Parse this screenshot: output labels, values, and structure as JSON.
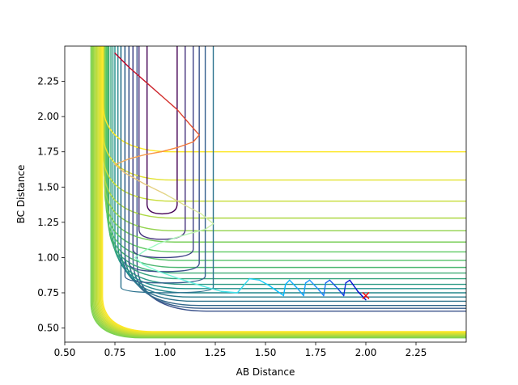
{
  "chart_data": {
    "type": "contour",
    "title": "",
    "xlabel": "AB Distance",
    "ylabel": "BC Distance",
    "xlim": [
      0.5,
      2.5
    ],
    "ylim": [
      0.4,
      2.5
    ],
    "xticks": [
      0.5,
      0.75,
      1.0,
      1.25,
      1.5,
      1.75,
      2.0,
      2.25
    ],
    "xtick_labels": [
      "0.50",
      "0.75",
      "1.00",
      "1.25",
      "1.50",
      "1.75",
      "2.00",
      "2.25"
    ],
    "yticks": [
      0.5,
      0.75,
      1.0,
      1.25,
      1.5,
      1.75,
      2.0,
      2.25
    ],
    "ytick_labels": [
      "0.50",
      "0.75",
      "1.00",
      "1.25",
      "1.50",
      "1.75",
      "2.00",
      "2.25"
    ],
    "grid": false,
    "colormap": [
      "#440154",
      "#3b528b",
      "#21918c",
      "#5ec962",
      "#fde725"
    ],
    "contour_levels": [
      {
        "xmin": 0.86,
        "ymin": 0.62
      },
      {
        "xmin": 0.84,
        "ymin": 0.64
      },
      {
        "xmin": 0.82,
        "ymin": 0.66
      },
      {
        "xmin": 0.8,
        "ymin": 0.69
      },
      {
        "xmin": 0.78,
        "ymin": 0.72
      },
      {
        "xmin": 0.765,
        "ymin": 0.75
      },
      {
        "xmin": 0.75,
        "ymin": 0.78
      },
      {
        "xmin": 0.74,
        "ymin": 0.81
      },
      {
        "xmin": 0.73,
        "ymin": 0.85
      },
      {
        "xmin": 0.72,
        "ymin": 0.89
      },
      {
        "xmin": 0.715,
        "ymin": 0.93
      },
      {
        "xmin": 0.71,
        "ymin": 0.98
      },
      {
        "xmin": 0.705,
        "ymin": 1.04
      },
      {
        "xmin": 0.7,
        "ymin": 1.11
      },
      {
        "xmin": 0.698,
        "ymin": 1.19
      },
      {
        "xmin": 0.695,
        "ymin": 1.28
      },
      {
        "xmin": 0.69,
        "ymin": 1.4
      },
      {
        "xmin": 0.69,
        "ymin": 1.55
      },
      {
        "xmin": 0.69,
        "ymin": 1.75
      }
    ],
    "outer_wall": {
      "xmin": 0.63,
      "ymin": 0.43,
      "levels": 14
    },
    "well_rings": [
      {
        "x0": 0.91,
        "x1": 1.06,
        "top": 2.5,
        "bottom": 1.38,
        "vy": 1.31,
        "color": "#440154"
      },
      {
        "x0": 0.87,
        "x1": 1.1,
        "top": 2.5,
        "bottom": 1.2,
        "vy": 1.13,
        "color": "#46337e"
      },
      {
        "x0": 0.84,
        "x1": 1.14,
        "top": 2.5,
        "bottom": 1.06,
        "vy": 1.0,
        "color": "#404387"
      },
      {
        "x0": 0.82,
        "x1": 1.17,
        "top": 2.5,
        "bottom": 0.96,
        "vy": 0.9,
        "color": "#3b528b"
      },
      {
        "x0": 0.8,
        "x1": 1.2,
        "top": 2.5,
        "bottom": 0.87,
        "vy": 0.82,
        "color": "#345f8d"
      },
      {
        "x0": 0.78,
        "x1": 1.24,
        "top": 2.5,
        "bottom": 0.79,
        "vy": 0.75,
        "color": "#2c728e"
      }
    ],
    "trajectory": {
      "name": "trajectory",
      "x": [
        0.75,
        0.82,
        0.9,
        0.98,
        1.06,
        1.12,
        1.17,
        1.14,
        1.06,
        0.98,
        0.9,
        0.82,
        0.75,
        0.8,
        0.9,
        1.0,
        1.1,
        1.18,
        1.24,
        1.2,
        1.12,
        1.05,
        0.97,
        0.9,
        0.85,
        0.89,
        0.97,
        1.07,
        1.18,
        1.28,
        1.36,
        1.42,
        1.47,
        1.52,
        1.56,
        1.59,
        1.6,
        1.62,
        1.66,
        1.69,
        1.7,
        1.72,
        1.76,
        1.79,
        1.8,
        1.82,
        1.86,
        1.89,
        1.9,
        1.92,
        1.96,
        2.0
      ],
      "y": [
        2.45,
        2.35,
        2.25,
        2.15,
        2.05,
        1.95,
        1.87,
        1.82,
        1.78,
        1.75,
        1.73,
        1.7,
        1.66,
        1.6,
        1.52,
        1.45,
        1.37,
        1.31,
        1.24,
        1.2,
        1.17,
        1.14,
        1.1,
        1.05,
        1.0,
        0.95,
        0.9,
        0.85,
        0.8,
        0.76,
        0.75,
        0.85,
        0.84,
        0.8,
        0.76,
        0.73,
        0.81,
        0.84,
        0.78,
        0.73,
        0.82,
        0.84,
        0.78,
        0.73,
        0.82,
        0.84,
        0.78,
        0.73,
        0.82,
        0.84,
        0.76,
        0.7
      ],
      "color_start": "#bd0026",
      "color_end": "#0000cd"
    },
    "marker": {
      "x": 2.0,
      "y": 0.73,
      "symbol": "x",
      "color": "#ff0000"
    }
  }
}
